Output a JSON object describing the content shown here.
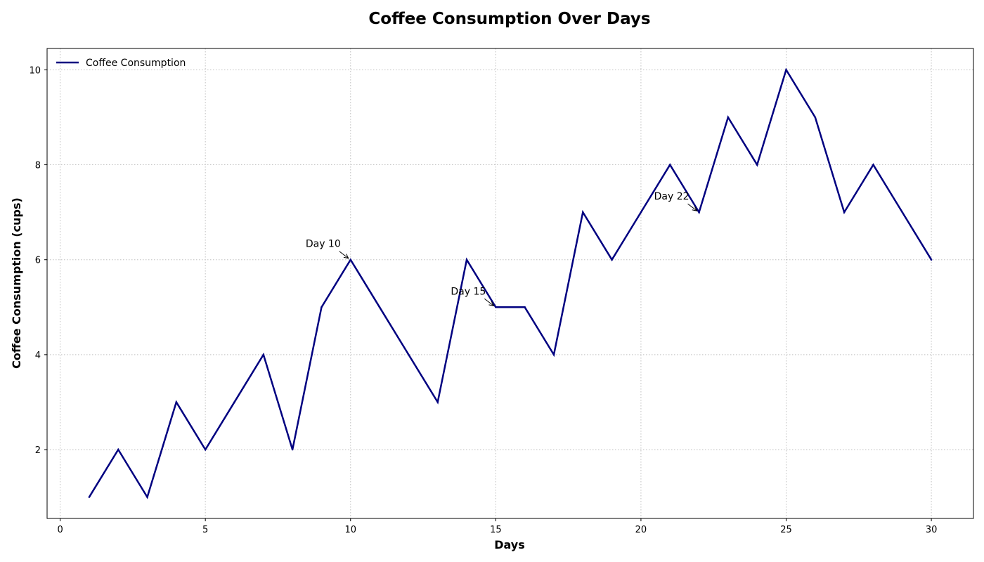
{
  "chart_data": {
    "type": "line",
    "title": "Coffee Consumption Over Days",
    "xlabel": "Days",
    "ylabel": "Coffee Consumption (cups)",
    "xlim": [
      -0.45,
      31.45
    ],
    "ylim": [
      0.55,
      10.45
    ],
    "xticks": [
      0,
      5,
      10,
      15,
      20,
      25,
      30
    ],
    "yticks": [
      2,
      4,
      6,
      8,
      10
    ],
    "grid": true,
    "legend_position": "top-left",
    "series": [
      {
        "name": "Coffee Consumption",
        "color": "#000080",
        "x": [
          1,
          2,
          3,
          4,
          5,
          6,
          7,
          8,
          9,
          10,
          11,
          12,
          13,
          14,
          15,
          16,
          17,
          18,
          19,
          20,
          21,
          22,
          23,
          24,
          25,
          26,
          27,
          28,
          29,
          30
        ],
        "y": [
          1,
          2,
          1,
          3,
          2,
          3,
          4,
          2,
          5,
          6,
          5,
          4,
          3,
          6,
          5,
          5,
          4,
          7,
          6,
          7,
          8,
          7,
          9,
          8,
          10,
          9,
          7,
          8,
          7,
          6
        ]
      }
    ],
    "annotations": [
      {
        "text": "Day 10",
        "x": 10,
        "y": 6
      },
      {
        "text": "Day 15",
        "x": 15,
        "y": 5
      },
      {
        "text": "Day 22",
        "x": 22,
        "y": 7
      }
    ]
  }
}
